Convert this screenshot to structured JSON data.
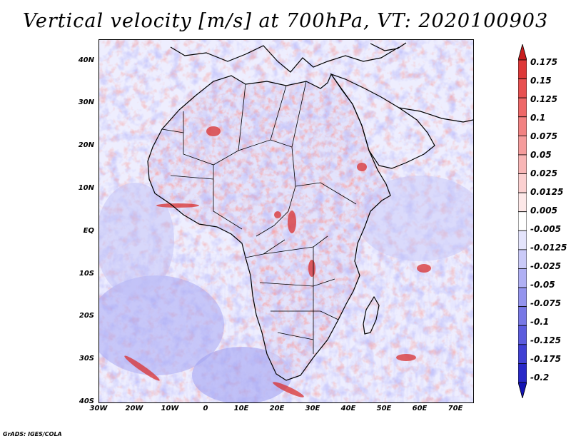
{
  "title": "Vertical velocity [m/s] at 700hPa, VT: 2020100903",
  "credit": "GrADS: IGES/COLA",
  "lat_labels": [
    "40N",
    "30N",
    "20N",
    "10N",
    "EQ",
    "10S",
    "20S",
    "30S",
    "40S"
  ],
  "lon_labels": [
    "30W",
    "20W",
    "10W",
    "0",
    "10E",
    "20E",
    "30E",
    "40E",
    "50E",
    "60E",
    "70E"
  ],
  "colorbar": {
    "levels": [
      "0.175",
      "0.15",
      "0.125",
      "0.1",
      "0.075",
      "0.05",
      "0.025",
      "0.0125",
      "0.005",
      "-0.005",
      "-0.0125",
      "-0.025",
      "-0.05",
      "-0.075",
      "-0.1",
      "-0.125",
      "-0.175",
      "-0.2"
    ],
    "colors": [
      "#c81e1e",
      "#de3838",
      "#e85050",
      "#ee6868",
      "#f28282",
      "#f59c9c",
      "#f8b6b6",
      "#fbd0d0",
      "#fde8e8",
      "#ffffff",
      "#e4e4fc",
      "#cacaf8",
      "#b0b0f4",
      "#9494ee",
      "#7878e6",
      "#5c5cde",
      "#4040d4",
      "#2828c8",
      "#1414b4"
    ]
  },
  "chart_data": {
    "type": "heatmap",
    "field": "Vertical velocity",
    "units": "m/s",
    "level": "700hPa",
    "valid_time": "2020100903",
    "lon_range": [
      -30,
      75
    ],
    "lat_range": [
      -40,
      45
    ]
  }
}
